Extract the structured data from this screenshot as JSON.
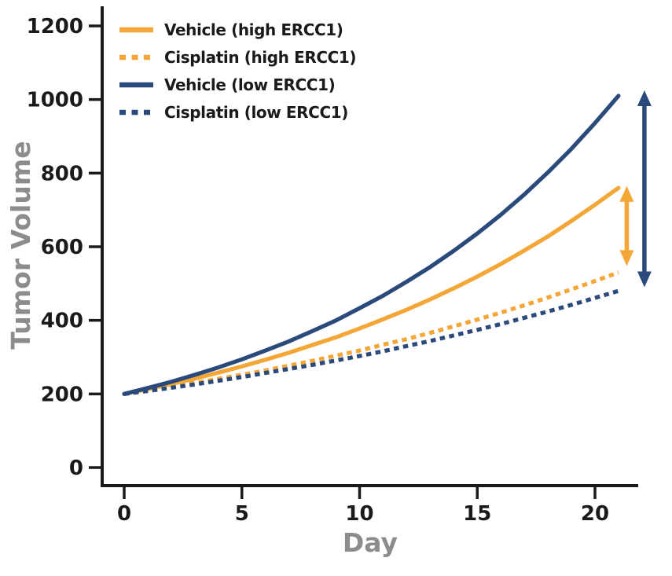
{
  "chart_data": {
    "type": "line",
    "title": "",
    "xlabel": "Day",
    "ylabel": "Tumor Volume",
    "xlim": [
      0,
      21.8
    ],
    "ylim": [
      0,
      1200
    ],
    "xticks": [
      0,
      5,
      10,
      15,
      20
    ],
    "yticks": [
      0,
      200,
      400,
      600,
      800,
      1000,
      1200
    ],
    "grid": false,
    "legend_position": "top-left-inside",
    "x": [
      0,
      1,
      2,
      3,
      4,
      5,
      6,
      7,
      8,
      9,
      10,
      11,
      12,
      13,
      14,
      15,
      16,
      17,
      18,
      19,
      20,
      21
    ],
    "series": [
      {
        "name": "Vehicle (high ERCC1)",
        "color": "#F4A636",
        "line_style": "solid",
        "values": [
          200,
          213,
          227,
          242,
          258,
          275,
          293,
          312,
          333,
          354,
          378,
          403,
          429,
          457,
          487,
          519,
          553,
          590,
          628,
          670,
          714,
          760
        ]
      },
      {
        "name": "Cisplatin (high ERCC1)",
        "color": "#F4A636",
        "line_style": "dotted",
        "values": [
          200,
          209,
          219,
          230,
          241,
          252,
          264,
          277,
          290,
          304,
          318,
          334,
          349,
          366,
          384,
          402,
          421,
          441,
          462,
          484,
          507,
          530
        ]
      },
      {
        "name": "Vehicle (low ERCC1)",
        "color": "#2B4A7C",
        "line_style": "solid",
        "values": [
          200,
          216,
          233,
          252,
          272,
          294,
          318,
          343,
          371,
          400,
          433,
          467,
          505,
          545,
          589,
          636,
          687,
          742,
          802,
          866,
          936,
          1010
        ]
      },
      {
        "name": "Cisplatin (low ERCC1)",
        "color": "#2B4A7C",
        "line_style": "dotted",
        "values": [
          200,
          208,
          217,
          226,
          236,
          246,
          257,
          268,
          279,
          291,
          303,
          316,
          330,
          344,
          359,
          374,
          390,
          407,
          424,
          442,
          461,
          480
        ]
      }
    ],
    "annotations": [
      {
        "type": "double_arrow",
        "color": "#F4A636",
        "day": 21.35,
        "value_top": 765,
        "value_bottom": 548
      },
      {
        "type": "double_arrow",
        "color": "#2B4A7C",
        "day": 22.1,
        "value_top": 1025,
        "value_bottom": 490
      }
    ]
  },
  "colors": {
    "orange": "#F4A636",
    "navy": "#2B4A7C",
    "axis": "#1A1A1A",
    "axis_title_gray": "#8C8C8C",
    "background": "#FFFFFF"
  }
}
